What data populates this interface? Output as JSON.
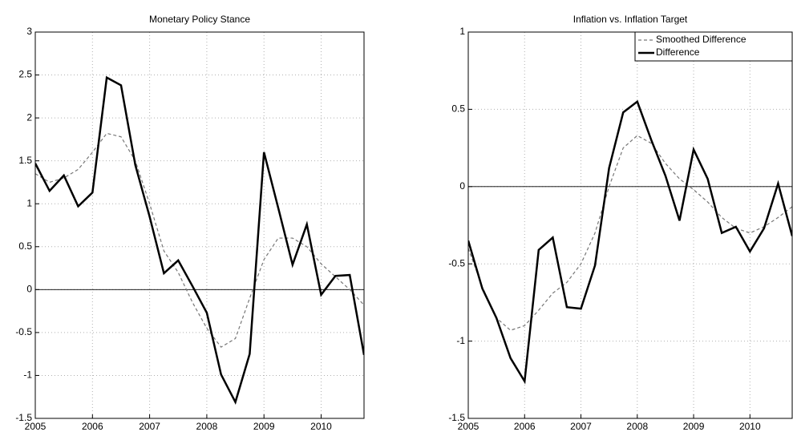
{
  "chart_data": [
    {
      "type": "line",
      "title": "Monetary Policy Stance",
      "x": [
        2005,
        2005.25,
        2005.5,
        2005.75,
        2006,
        2006.25,
        2006.5,
        2006.75,
        2007,
        2007.25,
        2007.5,
        2007.75,
        2008,
        2008.25,
        2008.5,
        2008.75,
        2009,
        2009.25,
        2009.5,
        2009.75,
        2010,
        2010.25,
        2010.5,
        2010.75
      ],
      "series": [
        {
          "color": "#777777",
          "style": "dashed",
          "values": [
            1.35,
            1.25,
            1.3,
            1.4,
            1.6,
            1.82,
            1.78,
            1.5,
            1.0,
            0.45,
            0.2,
            -0.15,
            -0.45,
            -0.67,
            -0.57,
            -0.1,
            0.35,
            0.6,
            0.6,
            0.5,
            0.3,
            0.15,
            0.0,
            -0.18
          ]
        },
        {
          "color": "#000000",
          "style": "solid",
          "values": [
            1.47,
            1.15,
            1.33,
            0.97,
            1.13,
            2.47,
            2.38,
            1.45,
            0.85,
            0.19,
            0.34,
            0.04,
            -0.27,
            -0.99,
            -1.31,
            -0.75,
            1.6,
            0.95,
            0.29,
            0.76,
            -0.06,
            0.16,
            0.17,
            -0.76
          ]
        }
      ],
      "xlim": [
        2005,
        2010.75
      ],
      "xticks": [
        2005,
        2006,
        2007,
        2008,
        2009,
        2010
      ],
      "ylim": [
        -1.5,
        3
      ],
      "yticks": [
        -1.5,
        -1,
        -0.5,
        0,
        0.5,
        1,
        1.5,
        2,
        2.5,
        3
      ],
      "grid": true,
      "zero_line": true
    },
    {
      "type": "line",
      "title": "Inflation vs. Inflation Target",
      "x": [
        2005,
        2005.25,
        2005.5,
        2005.75,
        2006,
        2006.25,
        2006.5,
        2006.75,
        2007,
        2007.25,
        2007.5,
        2007.75,
        2008,
        2008.25,
        2008.5,
        2008.75,
        2009,
        2009.25,
        2009.5,
        2009.75,
        2010,
        2010.25,
        2010.5,
        2010.75
      ],
      "series": [
        {
          "name": "Smoothed Difference",
          "color": "#777777",
          "style": "dashed",
          "values": [
            -0.4,
            -0.65,
            -0.85,
            -0.93,
            -0.9,
            -0.8,
            -0.69,
            -0.62,
            -0.5,
            -0.3,
            0.0,
            0.25,
            0.33,
            0.28,
            0.15,
            0.05,
            -0.02,
            -0.1,
            -0.2,
            -0.27,
            -0.3,
            -0.26,
            -0.2,
            -0.13
          ]
        },
        {
          "name": "Difference",
          "color": "#000000",
          "style": "solid",
          "values": [
            -0.35,
            -0.66,
            -0.85,
            -1.11,
            -1.26,
            -0.41,
            -0.33,
            -0.78,
            -0.79,
            -0.51,
            0.12,
            0.48,
            0.55,
            0.3,
            0.07,
            -0.22,
            0.24,
            0.05,
            -0.3,
            -0.26,
            -0.42,
            -0.27,
            0.02,
            -0.32
          ]
        }
      ],
      "xlim": [
        2005,
        2010.75
      ],
      "xticks": [
        2005,
        2006,
        2007,
        2008,
        2009,
        2010
      ],
      "ylim": [
        -1.5,
        1
      ],
      "yticks": [
        -1.5,
        -1,
        -0.5,
        0,
        0.5,
        1
      ],
      "grid": true,
      "zero_line": true,
      "legend": "upper right"
    }
  ]
}
